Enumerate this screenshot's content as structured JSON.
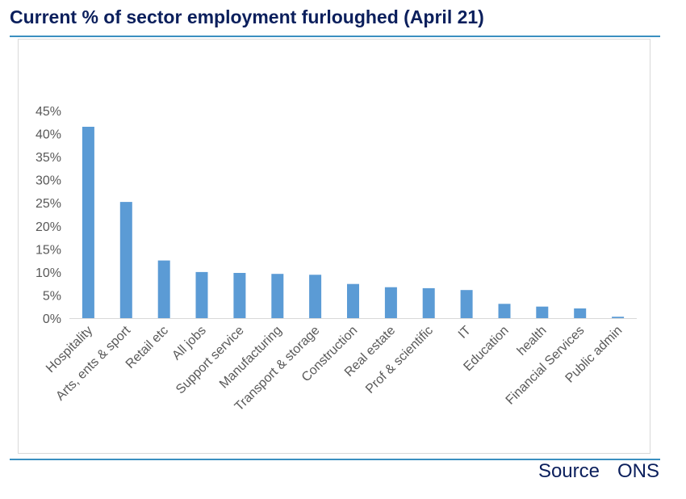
{
  "header": {
    "title": "Current % of sector employment furloughed (April 21)"
  },
  "footer": {
    "source_label": "Source",
    "source_value": "ONS"
  },
  "colors": {
    "bar": "#5b9bd5",
    "axis": "#d9d9d9",
    "title": "#0b1f5c",
    "rule": "#3a8fc0"
  },
  "chart_data": {
    "type": "bar",
    "title": "Current % of sector employment furloughed (April 21)",
    "xlabel": "",
    "ylabel": "",
    "ylim": [
      0,
      45
    ],
    "yticks": [
      0,
      5,
      10,
      15,
      20,
      25,
      30,
      35,
      40,
      45
    ],
    "ytick_labels": [
      "0%",
      "5%",
      "10%",
      "15%",
      "20%",
      "25%",
      "30%",
      "35%",
      "40%",
      "45%"
    ],
    "grid": false,
    "legend": "none",
    "categories": [
      "Hospitality",
      "Arts, ents & sport",
      "Retail etc",
      "All jobs",
      "Support service",
      "Manufacturing",
      "Transport & storage",
      "Construction",
      "Real estate",
      "Prof & scientific",
      "IT",
      "Education",
      "health",
      "Financial Services",
      "Public admin"
    ],
    "values": [
      41.5,
      25.2,
      12.5,
      10.0,
      9.8,
      9.6,
      9.4,
      7.4,
      6.7,
      6.5,
      6.1,
      3.1,
      2.5,
      2.1,
      0.3
    ]
  }
}
